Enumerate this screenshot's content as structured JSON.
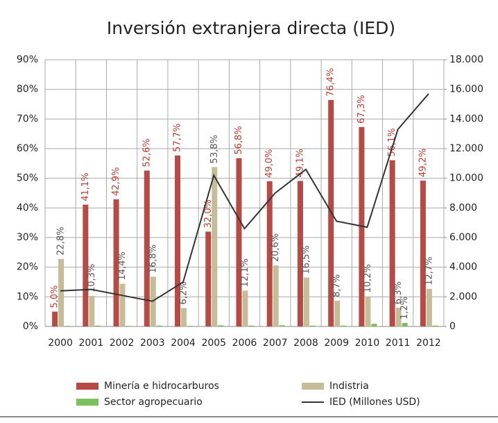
{
  "chart_data": {
    "type": "bar",
    "title": "Inversión extranjera directa (IED)",
    "categories": [
      "2000",
      "2001",
      "2002",
      "2003",
      "2004",
      "2005",
      "2006",
      "2007",
      "2008",
      "2009",
      "2010",
      "2011",
      "2012"
    ],
    "series": [
      {
        "name": "Minería e hidrocarburos",
        "color": "#b84a46",
        "values": [
          5.0,
          41.1,
          42.9,
          52.6,
          57.7,
          32.0,
          56.8,
          49.0,
          49.1,
          76.4,
          67.3,
          56.1,
          49.2
        ],
        "value_labels": [
          "5,0%",
          "41,1%",
          "42,9%",
          "52,6%",
          "57,7%",
          "32,0%",
          "56,8%",
          "49,0%",
          "49,1%",
          "76,4%",
          "67,3%",
          "56,1%",
          "49,2%"
        ]
      },
      {
        "name": "Indistria",
        "color": "#c4bd97",
        "values": [
          22.8,
          10.3,
          14.4,
          16.8,
          6.2,
          53.8,
          12.1,
          20.6,
          16.5,
          8.7,
          10.2,
          6.3,
          12.7
        ],
        "value_labels": [
          "22,8%",
          "10,3%",
          "14,4%",
          "16,8%",
          "6,2%",
          "53,8%",
          "12,1%",
          "20,6%",
          "16,5%",
          "8,7%",
          "10,2%",
          "6,3%",
          "12,7%"
        ]
      },
      {
        "name": "Sector agropecuario",
        "color": "#7dc05f",
        "values": [
          0.2,
          0.3,
          0.2,
          0.3,
          0.2,
          0.4,
          0.3,
          0.4,
          0.3,
          0.3,
          0.9,
          1.2,
          0.3
        ],
        "value_labels": [
          null,
          null,
          null,
          null,
          null,
          null,
          null,
          null,
          null,
          null,
          null,
          "1,2%",
          null
        ]
      },
      {
        "name": "IED (Millones USD)",
        "color": "#333333",
        "type": "line",
        "axis": "y2",
        "values": [
          2400,
          2500,
          2100,
          1700,
          3000,
          10200,
          6600,
          9000,
          10600,
          7100,
          6700,
          13300,
          15700
        ]
      }
    ],
    "ylim": [
      0,
      90
    ],
    "yticks": [
      {
        "value": 0,
        "label": "0%"
      },
      {
        "value": 10,
        "label": "10%"
      },
      {
        "value": 20,
        "label": "20%"
      },
      {
        "value": 30,
        "label": "30%"
      },
      {
        "value": 40,
        "label": "40%"
      },
      {
        "value": 50,
        "label": "50%"
      },
      {
        "value": 60,
        "label": "60%"
      },
      {
        "value": 70,
        "label": "70%"
      },
      {
        "value": 80,
        "label": "80%"
      },
      {
        "value": 90,
        "label": "90%"
      }
    ],
    "y2lim": [
      0,
      18000
    ],
    "y2ticks": [
      0,
      {
        "value": 2000,
        "label": "2.000"
      },
      {
        "value": 4000,
        "label": "4.000"
      },
      {
        "value": 6000,
        "label": "6.000"
      },
      {
        "value": 8000,
        "label": "8.000"
      },
      {
        "value": 10000,
        "label": "10.000"
      },
      {
        "value": 12000,
        "label": "12.000"
      },
      {
        "value": 14000,
        "label": "14.000"
      },
      {
        "value": 16000,
        "label": "16.000"
      },
      {
        "value": 18000,
        "label": "18.000"
      }
    ],
    "grid": true
  }
}
